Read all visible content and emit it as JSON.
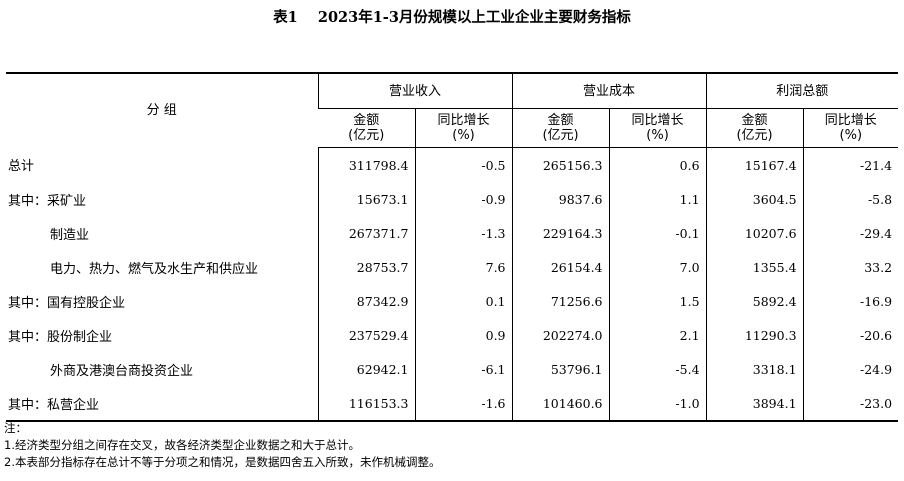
{
  "title": "表1    2023年1-3月份规模以上工业企业主要财务指标",
  "header": {
    "group_label": "分    组",
    "sections": [
      "营业收入",
      "营业成本",
      "利润总额"
    ],
    "sub": {
      "amount_line1": "金额",
      "amount_line2": "(亿元)",
      "growth_line1": "同比增长",
      "growth_line2": "(%)"
    }
  },
  "rows": [
    {
      "label": "总计",
      "indent": false,
      "values": [
        "311798.4",
        "-0.5",
        "265156.3",
        "0.6",
        "15167.4",
        "-21.4"
      ]
    },
    {
      "label": "其中：采矿业",
      "indent": false,
      "values": [
        "15673.1",
        "-0.9",
        "9837.6",
        "1.1",
        "3604.5",
        "-5.8"
      ]
    },
    {
      "label": "制造业",
      "indent": true,
      "values": [
        "267371.7",
        "-1.3",
        "229164.3",
        "-0.1",
        "10207.6",
        "-29.4"
      ]
    },
    {
      "label": "电力、热力、燃气及水生产和供应业",
      "indent": true,
      "values": [
        "28753.7",
        "7.6",
        "26154.4",
        "7.0",
        "1355.4",
        "33.2"
      ]
    },
    {
      "label": "其中：国有控股企业",
      "indent": false,
      "values": [
        "87342.9",
        "0.1",
        "71256.6",
        "1.5",
        "5892.4",
        "-16.9"
      ]
    },
    {
      "label": "其中：股份制企业",
      "indent": false,
      "values": [
        "237529.4",
        "0.9",
        "202274.0",
        "2.1",
        "11290.3",
        "-20.6"
      ]
    },
    {
      "label": "外商及港澳台商投资企业",
      "indent": true,
      "values": [
        "62942.1",
        "-6.1",
        "53796.1",
        "-5.4",
        "3318.1",
        "-24.9"
      ]
    },
    {
      "label": "其中：私营企业",
      "indent": false,
      "values": [
        "116153.3",
        "-1.6",
        "101460.6",
        "-1.0",
        "3894.1",
        "-23.0"
      ]
    }
  ],
  "notes": {
    "heading": "注：",
    "items": [
      "1.经济类型分组之间存在交叉，故各经济类型企业数据之和大于总计。",
      "2.本表部分指标存在总计不等于分项之和情况，是数据四舍五入所致，未作机械调整。"
    ]
  }
}
